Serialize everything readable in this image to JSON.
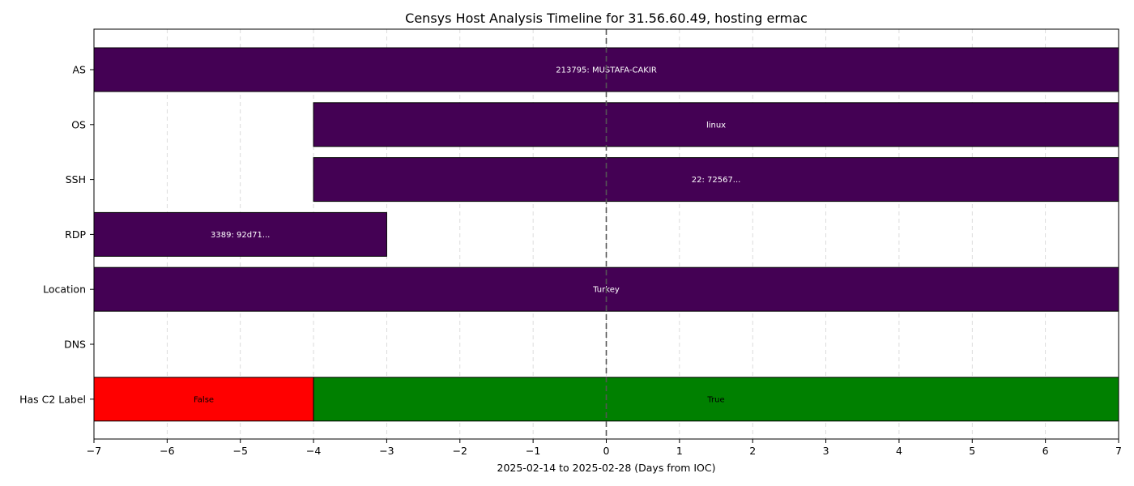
{
  "chart_data": {
    "type": "bar",
    "orientation": "horizontal",
    "title": "Censys Host Analysis Timeline for 31.56.60.49, hosting ermac",
    "xlabel": "2025-02-14 to 2025-02-28 (Days from IOC)",
    "ylabel": "",
    "xlim": [
      -7,
      7
    ],
    "xticks": [
      -7,
      -6,
      -5,
      -4,
      -3,
      -2,
      -1,
      0,
      1,
      2,
      3,
      4,
      5,
      6,
      7
    ],
    "grid": "vertical dashed",
    "reference_line_x": 0,
    "categories": [
      "AS",
      "OS",
      "SSH",
      "RDP",
      "Location",
      "DNS",
      "Has C2 Label"
    ],
    "segments": [
      {
        "category": "AS",
        "start": -7,
        "end": 7,
        "label": "213795: MUSTAFA-CAKIR",
        "color": "#440154",
        "label_color": "#ffffff"
      },
      {
        "category": "OS",
        "start": -4,
        "end": 7,
        "label": "linux",
        "color": "#440154",
        "label_color": "#ffffff"
      },
      {
        "category": "SSH",
        "start": -4,
        "end": 7,
        "label": "22: 72567...",
        "color": "#440154",
        "label_color": "#ffffff"
      },
      {
        "category": "RDP",
        "start": -7,
        "end": -3,
        "label": "3389: 92d71...",
        "color": "#440154",
        "label_color": "#ffffff"
      },
      {
        "category": "Location",
        "start": -7,
        "end": 7,
        "label": "Turkey",
        "color": "#440154",
        "label_color": "#ffffff"
      },
      {
        "category": "Has C2 Label",
        "start": -7,
        "end": -4,
        "label": "False",
        "color": "#ff0000",
        "label_color": "#000000"
      },
      {
        "category": "Has C2 Label",
        "start": -4,
        "end": 7,
        "label": "True",
        "color": "#008000",
        "label_color": "#000000"
      }
    ]
  }
}
